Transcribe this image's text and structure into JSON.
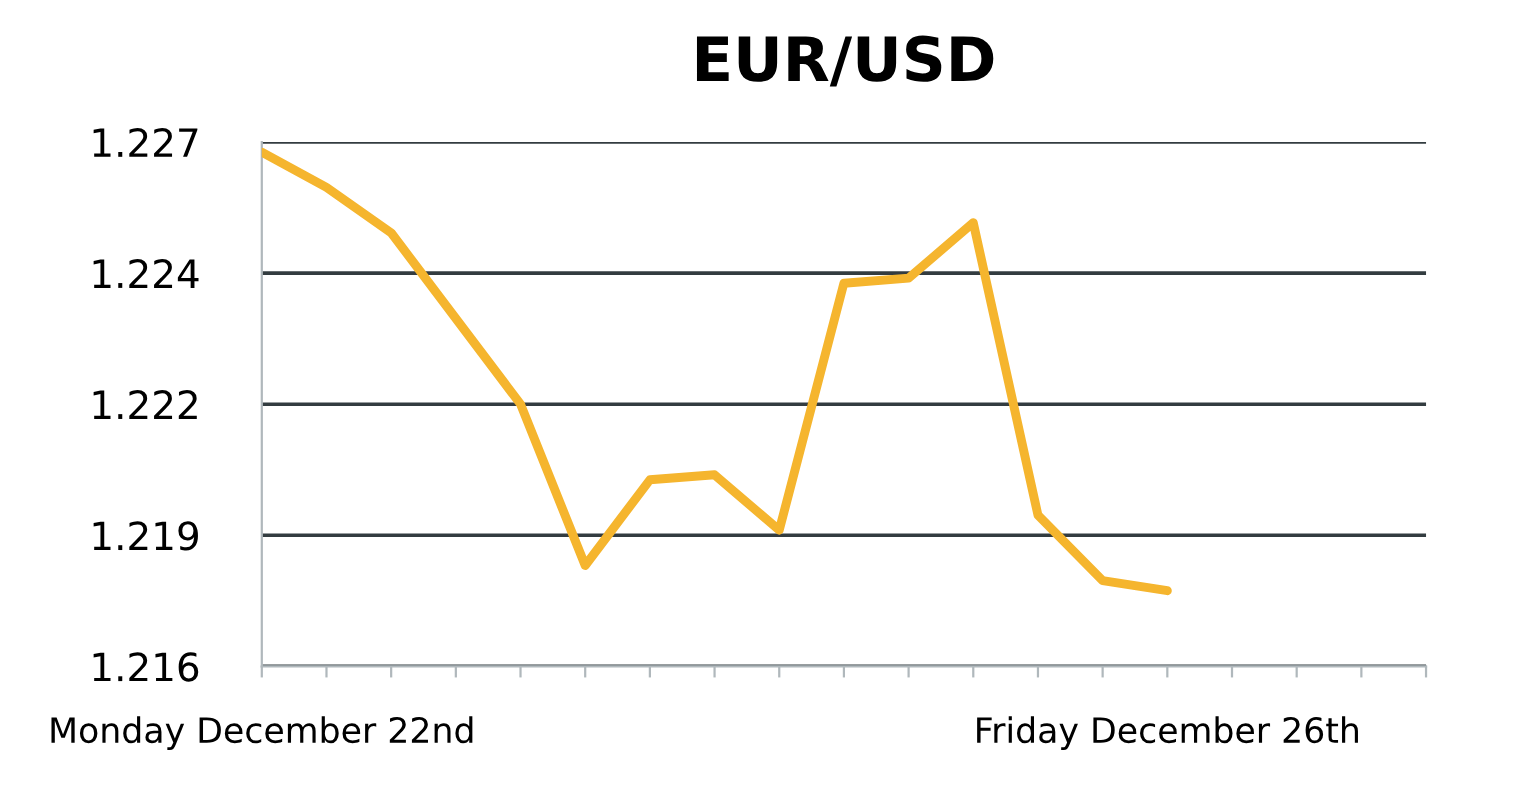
{
  "chart_data": {
    "type": "line",
    "title": "EUR/USD",
    "categories": [
      "Monday December 22nd",
      null,
      null,
      null,
      null,
      null,
      null,
      null,
      null,
      null,
      null,
      null,
      null,
      null,
      "Friday December 26th",
      null,
      null,
      null,
      null
    ],
    "series": [
      {
        "color": "#f5b52e",
        "values": [
          1.2266,
          1.2259,
          1.225,
          1.2233,
          1.2216,
          1.2184,
          1.2201,
          1.2202,
          1.2191,
          1.224,
          1.2241,
          1.2252,
          1.2194,
          1.2181,
          1.2179,
          null,
          null,
          null,
          null
        ]
      }
    ],
    "ylim": [
      1.2164,
      1.2268
    ],
    "yticks": [
      {
        "value": 1.2164,
        "label": "1.216"
      },
      {
        "value": 1.219,
        "label": "1.219"
      },
      {
        "value": 1.2216,
        "label": "1.222"
      },
      {
        "value": 1.2242,
        "label": "1.224"
      },
      {
        "value": 1.2268,
        "label": "1.227"
      }
    ],
    "grid": "y",
    "legend": false,
    "marker": "none",
    "line_style": "solid"
  }
}
